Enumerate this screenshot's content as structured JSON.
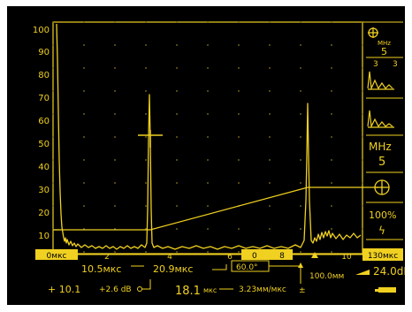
{
  "axis": {
    "y_ticks": [
      "100",
      "90",
      "80",
      "70",
      "60",
      "50",
      "40",
      "30",
      "20",
      "10"
    ],
    "x_ticks": [
      "2",
      "4",
      "6",
      "8",
      "10"
    ]
  },
  "range": {
    "start": "0мкс",
    "end": "130мкс"
  },
  "readouts": {
    "t_a": "10.5мкс",
    "t_b": "20.9мкс",
    "angle": "60.0°",
    "gain": "24.0dB",
    "ref_gain": "+ 10.1",
    "delta_gain": "+2.6 dB",
    "delta_t": "18.1",
    "delta_t_unit": "мкс",
    "velocity": "3.23мм/мкс",
    "depth": "100.0мм"
  },
  "side_panel": {
    "freq_unit_small": "MHz",
    "freq_value_small": "5",
    "count_left": "3",
    "count_right": "3",
    "freq_unit": "MHz",
    "freq_value": "5",
    "percent": "100%",
    "lightning": "ϟ"
  },
  "colors": {
    "trace": "#f0d020",
    "background": "#000000",
    "highlight": "#f0d020"
  }
}
